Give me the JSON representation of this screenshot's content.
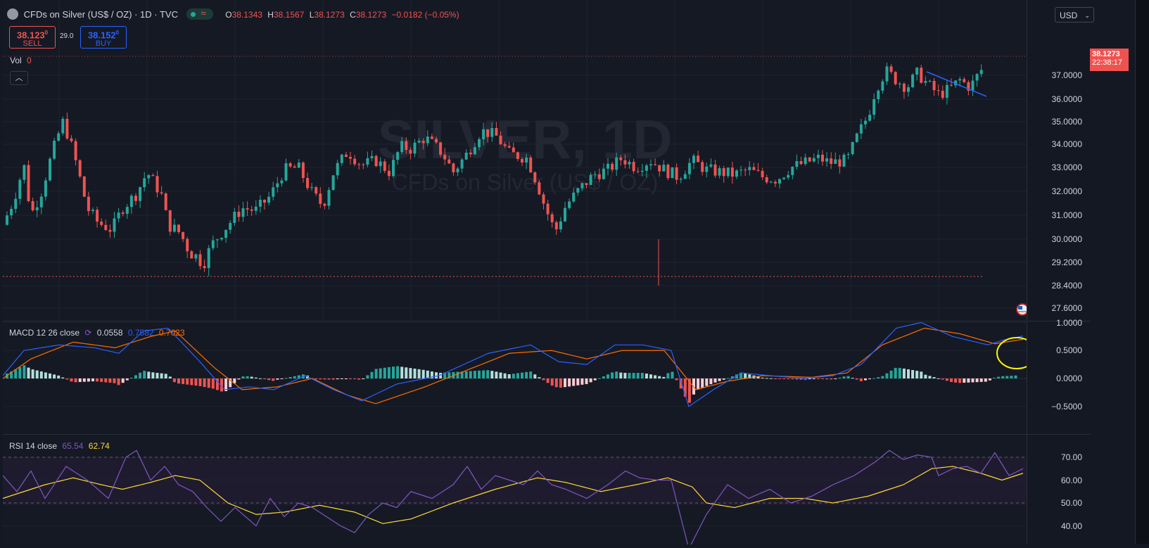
{
  "header": {
    "symbol_title": "CFDs on Silver (US$ / OZ) · 1D · TVC",
    "open_label": "O",
    "open": "38.1343",
    "high_label": "H",
    "high": "38.1567",
    "low_label": "L",
    "low": "38.1273",
    "close_label": "C",
    "close": "38.1273",
    "change": "−0.0182 (−0.05%)"
  },
  "trade": {
    "sell_price": "38.123",
    "sell_sup": "0",
    "sell_label": "SELL",
    "spread": "29.0",
    "buy_price": "38.152",
    "buy_sup": "0",
    "buy_label": "BUY"
  },
  "vol": {
    "label": "Vol",
    "value": "0"
  },
  "currency": "USD",
  "watermark": {
    "symbol": "SILVER, 1D",
    "name": "CFDs on Silver (US$ / OZ)"
  },
  "price_axis": {
    "ticks": [
      "37.0000",
      "36.0000",
      "35.0000",
      "34.0000",
      "33.0000",
      "32.0000",
      "31.0000",
      "30.0000",
      "29.2000",
      "28.4000",
      "27.6000"
    ],
    "current_price": "38.1273",
    "countdown": "22:38:17"
  },
  "macd": {
    "label": "MACD 12 26 close",
    "hist": "0.0558",
    "macd": "0.7582",
    "signal": "0.7023",
    "ticks": [
      "1.0000",
      "0.5000",
      "0.0000",
      "−0.5000"
    ]
  },
  "rsi": {
    "label": "RSI 14 close",
    "rsi": "65.54",
    "ma": "62.74",
    "ticks": [
      "70.00",
      "60.00",
      "50.00",
      "40.00"
    ]
  },
  "colors": {
    "up": "#26a69a",
    "down": "#ef5350",
    "macd": "#2962ff",
    "signal": "#ff6d00",
    "rsi": "#7e57c2",
    "rsi_ma": "#fdd835",
    "background": "#151924"
  },
  "icons": [
    "collapse-chevron-icon",
    "refresh-icon",
    "us-flag-event-icon",
    "chevron-down-icon",
    "symbol-logo-icon"
  ]
}
